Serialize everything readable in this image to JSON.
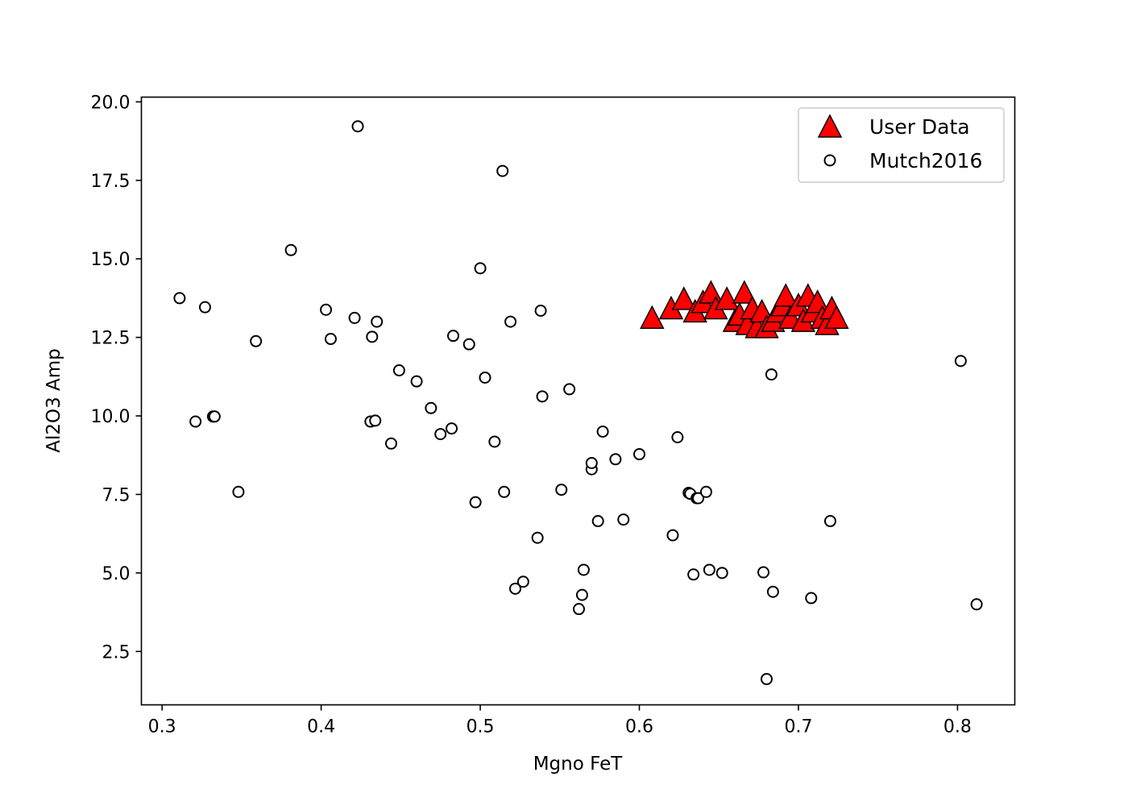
{
  "chart_data": {
    "type": "scatter",
    "title": "",
    "xlabel": "Mgno FeT",
    "ylabel": "Al2O3 Amp",
    "xlim": [
      0.287,
      0.836
    ],
    "ylim": [
      0.8,
      20.15
    ],
    "xticks": [
      0.3,
      0.4,
      0.5,
      0.6,
      0.7,
      0.8
    ],
    "xtick_labels": [
      "0.3",
      "0.4",
      "0.5",
      "0.6",
      "0.7",
      "0.8"
    ],
    "yticks": [
      2.5,
      5.0,
      7.5,
      10.0,
      12.5,
      15.0,
      17.5,
      20.0
    ],
    "ytick_labels": [
      "2.5",
      "5.0",
      "7.5",
      "10.0",
      "12.5",
      "15.0",
      "17.5",
      "20.0"
    ],
    "grid": false,
    "legend_position": "top-right",
    "series": [
      {
        "name": "User Data",
        "marker": "triangle",
        "color": "#ff0000",
        "edge_color": "#000000",
        "points": [
          [
            0.608,
            13.1
          ],
          [
            0.62,
            13.4
          ],
          [
            0.628,
            13.7
          ],
          [
            0.635,
            13.3
          ],
          [
            0.64,
            13.6
          ],
          [
            0.645,
            13.9
          ],
          [
            0.648,
            13.4
          ],
          [
            0.655,
            13.7
          ],
          [
            0.66,
            13.0
          ],
          [
            0.663,
            13.2
          ],
          [
            0.666,
            13.9
          ],
          [
            0.668,
            12.9
          ],
          [
            0.671,
            13.4
          ],
          [
            0.674,
            12.8
          ],
          [
            0.677,
            13.3
          ],
          [
            0.68,
            12.8
          ],
          [
            0.684,
            13.0
          ],
          [
            0.687,
            13.3
          ],
          [
            0.69,
            13.5
          ],
          [
            0.692,
            13.8
          ],
          [
            0.695,
            13.1
          ],
          [
            0.7,
            13.5
          ],
          [
            0.703,
            13.0
          ],
          [
            0.706,
            13.8
          ],
          [
            0.709,
            13.3
          ],
          [
            0.712,
            13.6
          ],
          [
            0.715,
            13.1
          ],
          [
            0.718,
            12.9
          ],
          [
            0.721,
            13.4
          ],
          [
            0.724,
            13.1
          ]
        ]
      },
      {
        "name": "Mutch2016",
        "marker": "circle",
        "color": "#ffffff",
        "edge_color": "#000000",
        "points": [
          [
            0.311,
            13.75
          ],
          [
            0.321,
            9.82
          ],
          [
            0.327,
            13.46
          ],
          [
            0.332,
            9.98
          ],
          [
            0.333,
            9.98
          ],
          [
            0.348,
            7.58
          ],
          [
            0.359,
            12.38
          ],
          [
            0.381,
            15.28
          ],
          [
            0.403,
            13.38
          ],
          [
            0.406,
            12.45
          ],
          [
            0.421,
            13.12
          ],
          [
            0.423,
            19.22
          ],
          [
            0.431,
            9.82
          ],
          [
            0.432,
            12.52
          ],
          [
            0.434,
            9.85
          ],
          [
            0.435,
            13.0
          ],
          [
            0.444,
            9.12
          ],
          [
            0.449,
            11.45
          ],
          [
            0.46,
            11.1
          ],
          [
            0.469,
            10.25
          ],
          [
            0.475,
            9.42
          ],
          [
            0.482,
            9.6
          ],
          [
            0.483,
            12.55
          ],
          [
            0.493,
            12.28
          ],
          [
            0.497,
            7.25
          ],
          [
            0.5,
            14.7
          ],
          [
            0.503,
            11.22
          ],
          [
            0.509,
            9.18
          ],
          [
            0.514,
            17.8
          ],
          [
            0.515,
            7.58
          ],
          [
            0.519,
            13.0
          ],
          [
            0.522,
            4.5
          ],
          [
            0.527,
            4.72
          ],
          [
            0.536,
            6.12
          ],
          [
            0.538,
            13.35
          ],
          [
            0.539,
            10.62
          ],
          [
            0.551,
            7.65
          ],
          [
            0.556,
            10.85
          ],
          [
            0.562,
            3.85
          ],
          [
            0.564,
            4.3
          ],
          [
            0.565,
            5.1
          ],
          [
            0.57,
            8.3
          ],
          [
            0.57,
            8.5
          ],
          [
            0.574,
            6.65
          ],
          [
            0.577,
            9.5
          ],
          [
            0.585,
            8.62
          ],
          [
            0.59,
            6.7
          ],
          [
            0.6,
            8.78
          ],
          [
            0.621,
            6.2
          ],
          [
            0.624,
            9.32
          ],
          [
            0.631,
            7.55
          ],
          [
            0.632,
            7.52
          ],
          [
            0.634,
            4.95
          ],
          [
            0.636,
            7.38
          ],
          [
            0.637,
            7.38
          ],
          [
            0.642,
            7.58
          ],
          [
            0.644,
            5.1
          ],
          [
            0.652,
            5.0
          ],
          [
            0.678,
            5.02
          ],
          [
            0.68,
            1.62
          ],
          [
            0.683,
            11.32
          ],
          [
            0.684,
            4.4
          ],
          [
            0.708,
            4.2
          ],
          [
            0.72,
            6.65
          ],
          [
            0.802,
            11.75
          ],
          [
            0.812,
            4.0
          ]
        ]
      }
    ]
  }
}
